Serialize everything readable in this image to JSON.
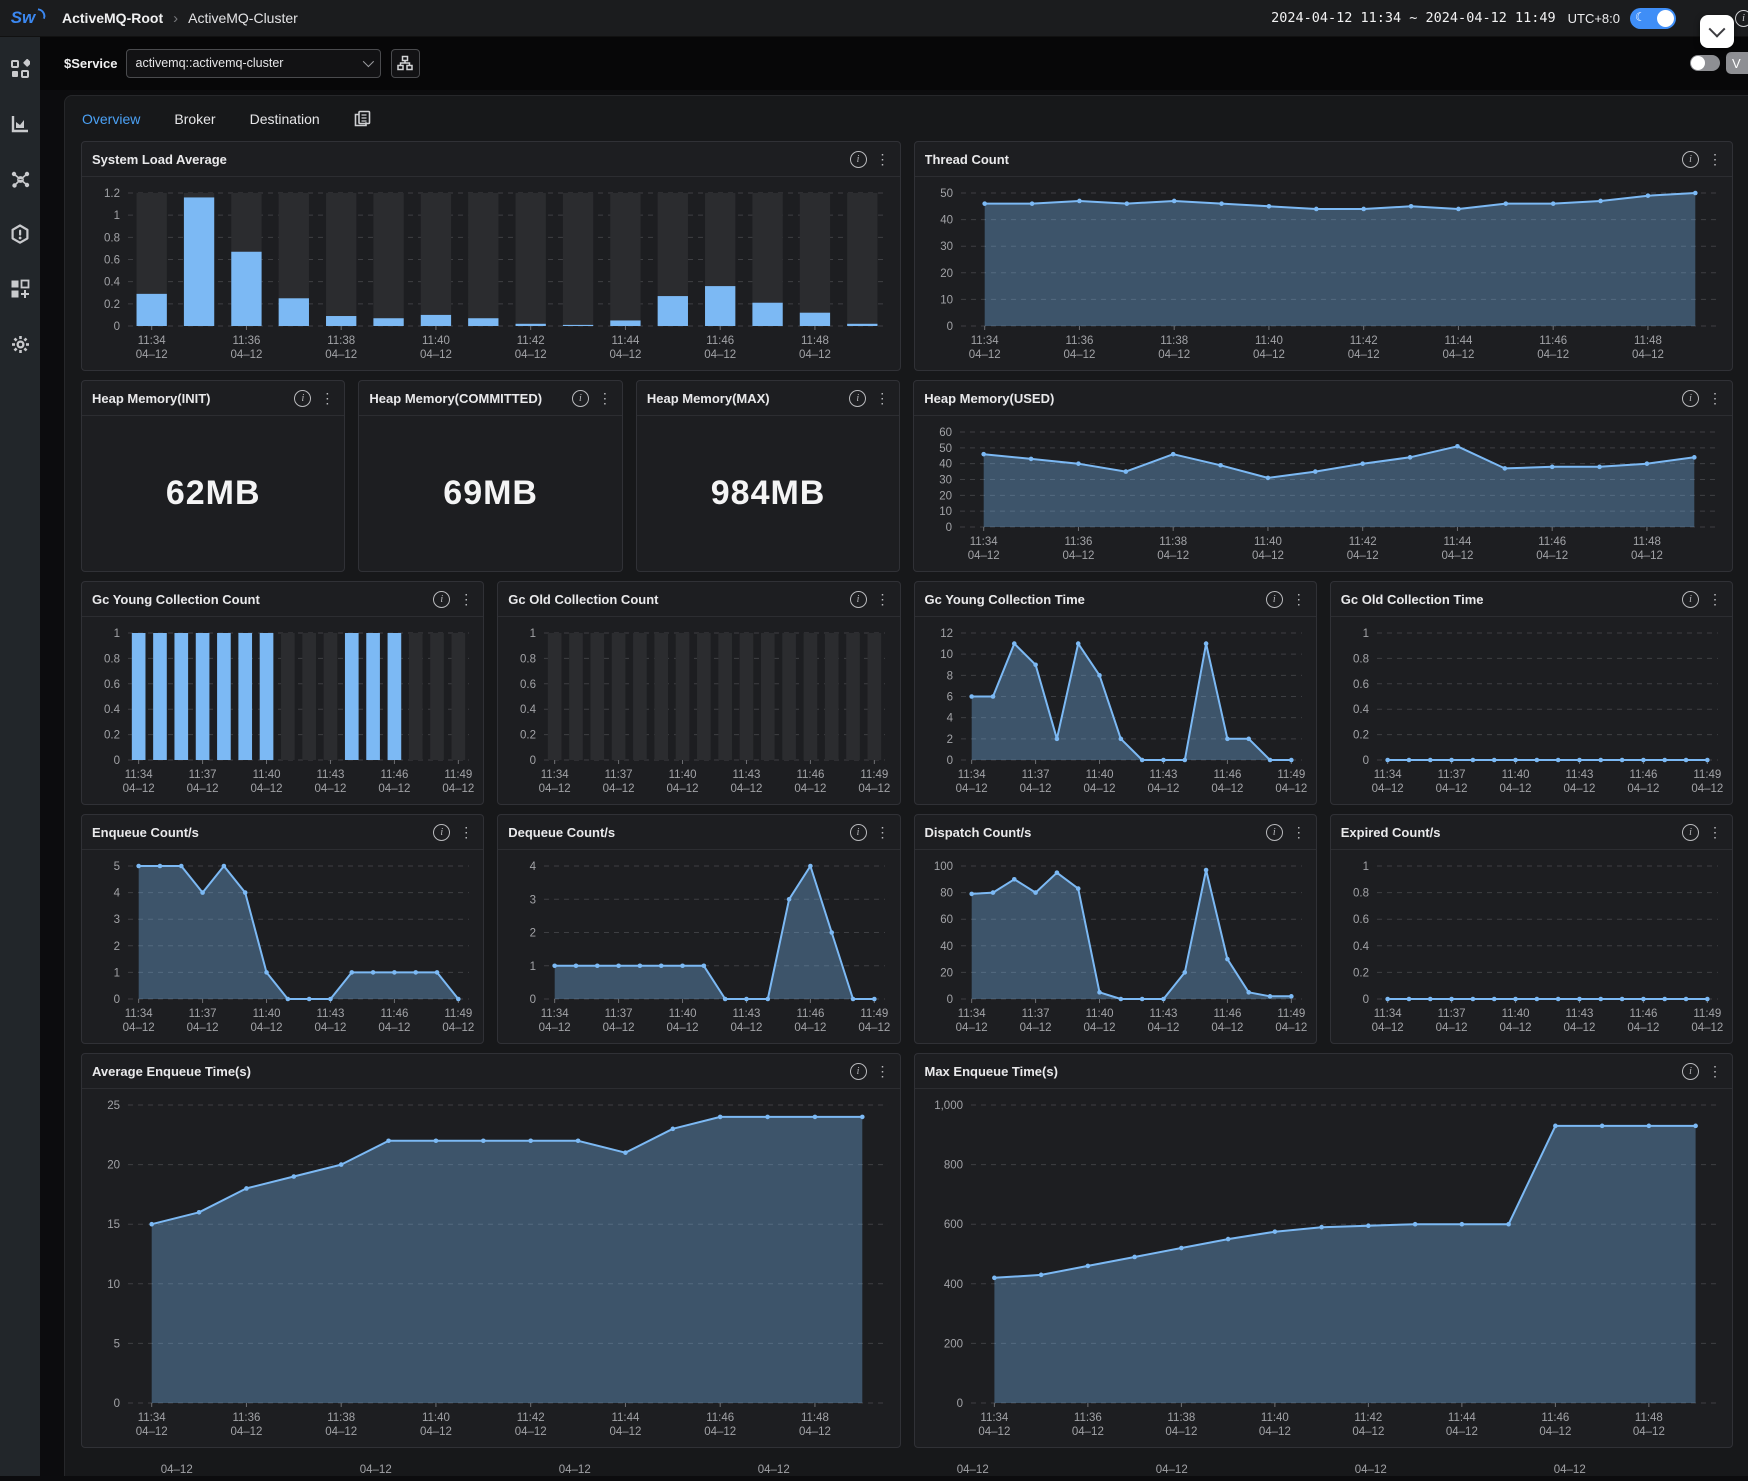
{
  "topbar": {
    "logo": "Sw",
    "breadcrumb": {
      "root": "ActiveMQ-Root",
      "separator": "›",
      "current": "ActiveMQ-Cluster"
    },
    "time_range": "2024-04-12 11:34 ~ 2024-04-12 11:49",
    "timezone": "UTC+8:0"
  },
  "sidebar": {
    "items": [
      {
        "icon": "marketplace-icon"
      },
      {
        "icon": "dashboards-icon"
      },
      {
        "icon": "topology-icon"
      },
      {
        "icon": "alarm-icon"
      },
      {
        "icon": "new-dashboard-icon"
      },
      {
        "icon": "settings-icon"
      }
    ]
  },
  "service_bar": {
    "label": "$Service",
    "selected_service": "activemq::activemq-cluster",
    "version_label": "V"
  },
  "tabs": [
    {
      "label": "Overview",
      "active": true
    },
    {
      "label": "Broker",
      "active": false
    },
    {
      "label": "Destination",
      "active": false
    }
  ],
  "colors": {
    "accent_blue": "#7cb9f4",
    "tab_active": "#4ba1f5",
    "toggle_on": "#3f8ef7",
    "card_bg": "#1d1e21",
    "bar_track": "#2b2c2f",
    "grid_line": "#4a4b4f",
    "axis_text": "#a2a3a7"
  },
  "xlabel_sets": {
    "long": {
      "labels": [
        "11:34",
        "11:36",
        "11:38",
        "11:40",
        "11:42",
        "11:44",
        "11:46",
        "11:48"
      ],
      "indices": [
        0,
        2,
        4,
        6,
        8,
        10,
        12,
        14
      ],
      "sub": "04–12"
    },
    "short": {
      "labels": [
        "11:34",
        "11:37",
        "11:40",
        "11:43",
        "11:46",
        "11:49"
      ],
      "indices": [
        0,
        3,
        6,
        9,
        12,
        15
      ],
      "sub": "04–12"
    }
  },
  "charts": [
    {
      "key": "system_load",
      "title": "System Load Average",
      "type": "bar",
      "ymax": 1.2,
      "yticks": [
        0,
        0.2,
        0.4,
        0.6,
        0.8,
        1,
        1.2
      ],
      "ytick_labels": [
        "0",
        "0.2",
        "0.4",
        "0.6",
        "0.8",
        "1",
        "1.2"
      ],
      "values": [
        0.29,
        1.16,
        0.67,
        0.25,
        0.09,
        0.07,
        0.1,
        0.07,
        0.02,
        0.01,
        0.05,
        0.27,
        0.36,
        0.21,
        0.12,
        0.02
      ],
      "xlabels": "long"
    },
    {
      "key": "thread_count",
      "title": "Thread Count",
      "type": "area",
      "ymax": 50,
      "yticks": [
        0,
        10,
        20,
        30,
        40,
        50
      ],
      "ytick_labels": [
        "0",
        "10",
        "20",
        "30",
        "40",
        "50"
      ],
      "values": [
        46,
        46,
        47,
        46,
        47,
        46,
        45,
        44,
        44,
        45,
        44,
        46,
        46,
        47,
        49,
        50
      ],
      "xlabels": "long"
    },
    {
      "key": "heap_init",
      "title": "Heap Memory(INIT)",
      "type": "value",
      "value": "62MB"
    },
    {
      "key": "heap_committed",
      "title": "Heap Memory(COMMITTED)",
      "type": "value",
      "value": "69MB"
    },
    {
      "key": "heap_max",
      "title": "Heap Memory(MAX)",
      "type": "value",
      "value": "984MB"
    },
    {
      "key": "heap_used",
      "title": "Heap Memory(USED)",
      "type": "area",
      "ymax": 60,
      "yticks": [
        0,
        10,
        20,
        30,
        40,
        50,
        60
      ],
      "ytick_labels": [
        "0",
        "10",
        "20",
        "30",
        "40",
        "50",
        "60"
      ],
      "values": [
        46,
        43,
        40,
        35,
        46,
        39,
        31,
        35,
        40,
        44,
        51,
        37,
        38,
        38,
        40,
        44
      ],
      "xlabels": "long"
    },
    {
      "key": "gc_young_count",
      "title": "Gc Young Collection Count",
      "type": "bar",
      "ymax": 1,
      "yticks": [
        0,
        0.2,
        0.4,
        0.6,
        0.8,
        1
      ],
      "ytick_labels": [
        "0",
        "0.2",
        "0.4",
        "0.6",
        "0.8",
        "1"
      ],
      "values": [
        1,
        1,
        1,
        1,
        1,
        1,
        1,
        0,
        0,
        0,
        1,
        1,
        1,
        0,
        0,
        0
      ],
      "xlabels": "short"
    },
    {
      "key": "gc_old_count",
      "title": "Gc Old Collection Count",
      "type": "bar",
      "ymax": 1,
      "yticks": [
        0,
        0.2,
        0.4,
        0.6,
        0.8,
        1
      ],
      "ytick_labels": [
        "0",
        "0.2",
        "0.4",
        "0.6",
        "0.8",
        "1"
      ],
      "values": [
        0,
        0,
        0,
        0,
        0,
        0,
        0,
        0,
        0,
        0,
        0,
        0,
        0,
        0,
        0,
        0
      ],
      "xlabels": "short"
    },
    {
      "key": "gc_young_time",
      "title": "Gc Young Collection Time",
      "type": "area",
      "ymax": 12,
      "yticks": [
        0,
        2,
        4,
        6,
        8,
        10,
        12
      ],
      "ytick_labels": [
        "0",
        "2",
        "4",
        "6",
        "8",
        "10",
        "12"
      ],
      "values": [
        6,
        6,
        11,
        9,
        2,
        11,
        8,
        2,
        0,
        0,
        0,
        11,
        2,
        2,
        0,
        0
      ],
      "xlabels": "short"
    },
    {
      "key": "gc_old_time",
      "title": "Gc Old Collection Time",
      "type": "area",
      "ymax": 1,
      "yticks": [
        0,
        0.2,
        0.4,
        0.6,
        0.8,
        1
      ],
      "ytick_labels": [
        "0",
        "0.2",
        "0.4",
        "0.6",
        "0.8",
        "1"
      ],
      "values": [
        0,
        0,
        0,
        0,
        0,
        0,
        0,
        0,
        0,
        0,
        0,
        0,
        0,
        0,
        0,
        0
      ],
      "xlabels": "short"
    },
    {
      "key": "enqueue_count",
      "title": "Enqueue Count/s",
      "type": "area",
      "ymax": 5,
      "yticks": [
        0,
        1,
        2,
        3,
        4,
        5
      ],
      "ytick_labels": [
        "0",
        "1",
        "2",
        "3",
        "4",
        "5"
      ],
      "values": [
        5,
        5,
        5,
        4,
        5,
        4,
        1,
        0,
        0,
        0,
        1,
        1,
        1,
        1,
        1,
        0
      ],
      "xlabels": "short"
    },
    {
      "key": "dequeue_count",
      "title": "Dequeue Count/s",
      "type": "area",
      "ymax": 4,
      "yticks": [
        0,
        1,
        2,
        3,
        4
      ],
      "ytick_labels": [
        "0",
        "1",
        "2",
        "3",
        "4"
      ],
      "values": [
        1,
        1,
        1,
        1,
        1,
        1,
        1,
        1,
        0,
        0,
        0,
        3,
        4,
        2,
        0,
        0
      ],
      "xlabels": "short"
    },
    {
      "key": "dispatch_count",
      "title": "Dispatch Count/s",
      "type": "area",
      "ymax": 100,
      "yticks": [
        0,
        20,
        40,
        60,
        80,
        100
      ],
      "ytick_labels": [
        "0",
        "20",
        "40",
        "60",
        "80",
        "100"
      ],
      "values": [
        79,
        80,
        90,
        80,
        95,
        83,
        5,
        0,
        0,
        0,
        20,
        97,
        30,
        5,
        2,
        2
      ],
      "xlabels": "short"
    },
    {
      "key": "expired_count",
      "title": "Expired Count/s",
      "type": "area",
      "ymax": 1,
      "yticks": [
        0,
        0.2,
        0.4,
        0.6,
        0.8,
        1
      ],
      "ytick_labels": [
        "0",
        "0.2",
        "0.4",
        "0.6",
        "0.8",
        "1"
      ],
      "values": [
        0,
        0,
        0,
        0,
        0,
        0,
        0,
        0,
        0,
        0,
        0,
        0,
        0,
        0,
        0,
        0
      ],
      "xlabels": "short"
    },
    {
      "key": "avg_enqueue_time",
      "title": "Average Enqueue Time(s)",
      "type": "area",
      "ymax": 25,
      "yticks": [
        0,
        5,
        10,
        15,
        20,
        25
      ],
      "ytick_labels": [
        "0",
        "5",
        "10",
        "15",
        "20",
        "25"
      ],
      "values": [
        15,
        16,
        18,
        19,
        20,
        22,
        22,
        22,
        22,
        22,
        21,
        23,
        24,
        24,
        24,
        24
      ],
      "xlabels": "long"
    },
    {
      "key": "max_enqueue_time",
      "title": "Max Enqueue Time(s)",
      "type": "area",
      "ymax": 1000,
      "ml": 56,
      "yticks": [
        0,
        200,
        400,
        600,
        800,
        1000
      ],
      "ytick_labels": [
        "0",
        "200",
        "400",
        "600",
        "800",
        "1,000"
      ],
      "values": [
        420,
        430,
        460,
        490,
        520,
        550,
        575,
        590,
        595,
        600,
        600,
        600,
        930,
        930,
        930,
        930
      ],
      "xlabels": "long"
    },
    {
      "key": "cutoff_left",
      "type": "xlabels_only",
      "xlabels": "long"
    },
    {
      "key": "cutoff_right",
      "type": "xlabels_only",
      "xlabels": "long"
    }
  ]
}
